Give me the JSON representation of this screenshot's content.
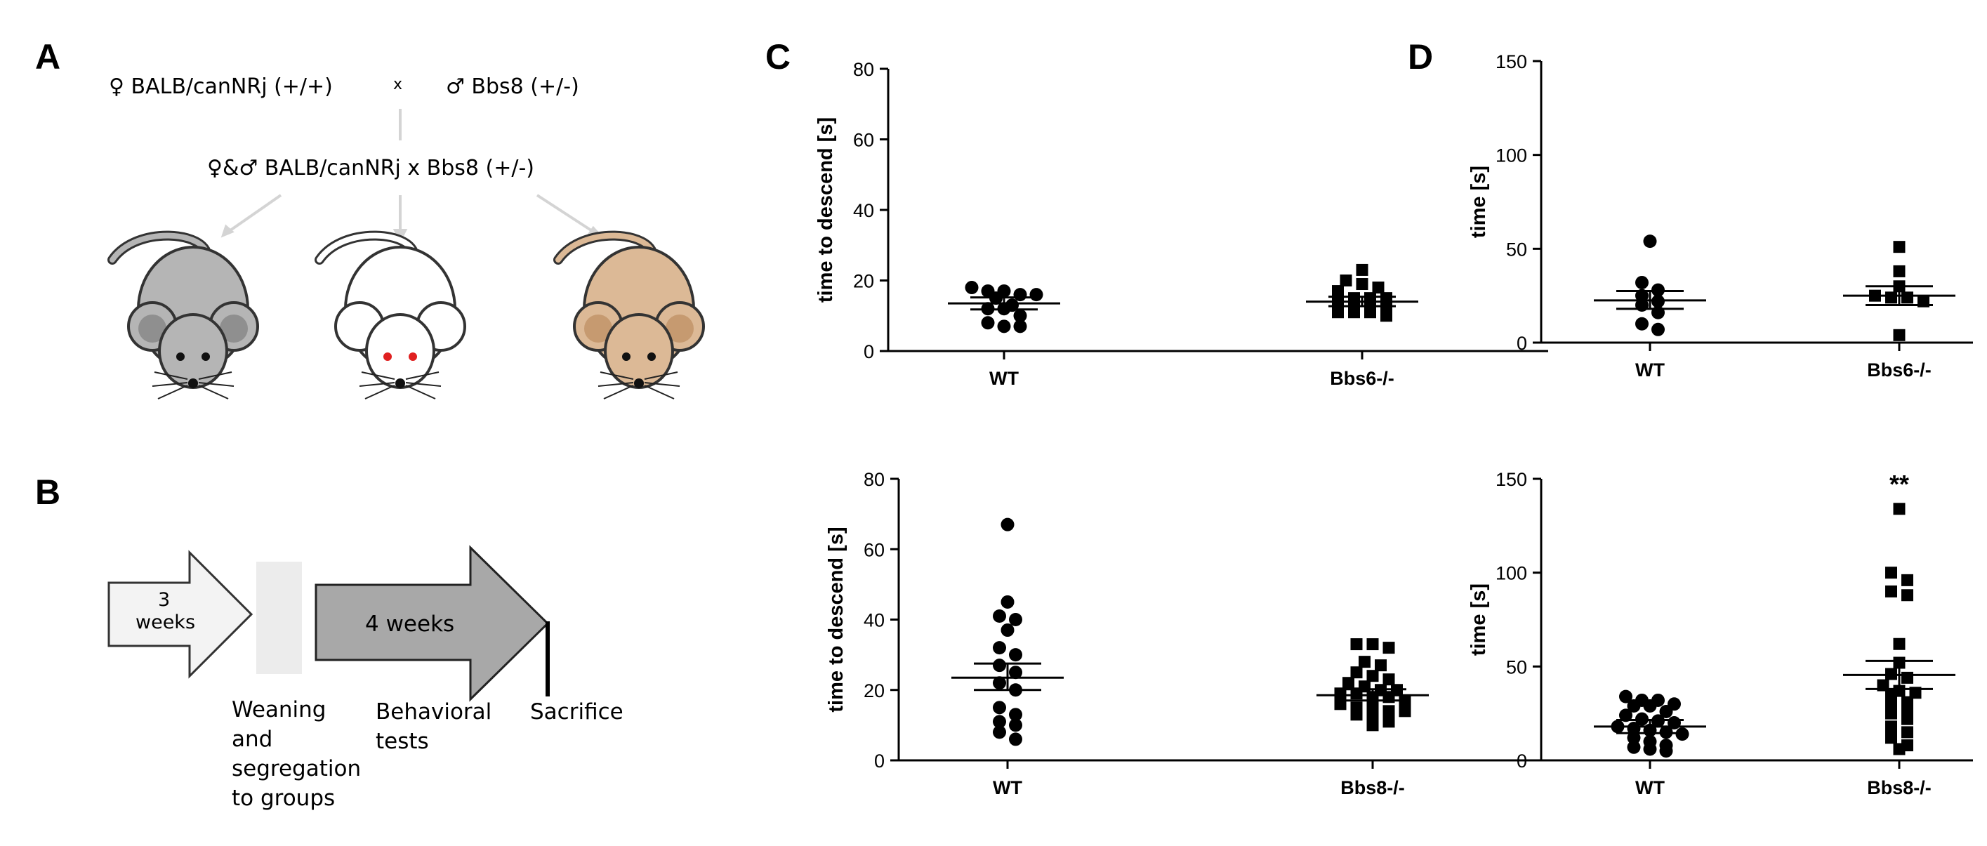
{
  "panel_labels": {
    "a": "A",
    "b": "B",
    "c": "C",
    "d": "D"
  },
  "panel_a": {
    "parent_female": "♀ BALB/canNRj (+/+)",
    "cross_symbol": "x",
    "parent_male": "♂ Bbs8 (+/-)",
    "offspring": "♀&♂ BALB/canNRj x Bbs8 (+/-)",
    "mice": [
      {
        "name": "grey",
        "body": "#b5b5b5",
        "ear": "#8f8f8f",
        "eye": "#111111"
      },
      {
        "name": "albino",
        "body": "#ffffff",
        "ear": "#ffffff",
        "eye": "#e02020"
      },
      {
        "name": "agouti",
        "body": "#dcb996",
        "ear": "#c69a70",
        "eye": "#111111"
      }
    ]
  },
  "panel_b": {
    "arrow1_label_line1": "3",
    "arrow1_label_line2": "weeks",
    "arrow2_label": "4 weeks",
    "step1_line1": "Weaning",
    "step1_line2": "and",
    "step1_line3": "segregation",
    "step1_line4": "to groups",
    "step2_line1": "Behavioral",
    "step2_line2": "tests",
    "step3": "Sacrifice"
  },
  "chart_data": [
    {
      "id": "c-top",
      "type": "scatter",
      "ylabel": "time to descend [s]",
      "ylim": [
        0,
        80
      ],
      "yticks": [
        0,
        20,
        40,
        60,
        80
      ],
      "categories": [
        "WT",
        "Bbs6-/-"
      ],
      "series": [
        {
          "name": "WT",
          "marker": "circle",
          "values": [
            16,
            17,
            17,
            16,
            15,
            18,
            13,
            12,
            12,
            10,
            7,
            7,
            8
          ],
          "mean": 13.5,
          "sem_low": 11.8,
          "sem_high": 15.2,
          "annotation": ""
        },
        {
          "name": "Bbs6-/-",
          "marker": "square",
          "values": [
            23,
            20,
            19,
            18,
            17,
            15,
            15,
            15,
            14,
            13,
            13,
            12,
            11,
            11,
            11,
            10
          ],
          "mean": 14,
          "sem_low": 12.7,
          "sem_high": 15.4,
          "annotation": ""
        }
      ]
    },
    {
      "id": "c-bottom",
      "type": "scatter",
      "ylabel": "time to descend [s]",
      "ylim": [
        0,
        80
      ],
      "yticks": [
        0,
        20,
        40,
        60,
        80
      ],
      "categories": [
        "WT",
        "Bbs8-/-"
      ],
      "series": [
        {
          "name": "WT",
          "marker": "circle",
          "values": [
            67,
            45,
            41,
            40,
            37,
            32,
            30,
            27,
            25,
            22,
            20,
            15,
            13,
            11,
            10,
            8,
            6
          ],
          "mean": 23.5,
          "sem_low": 20,
          "sem_high": 27.5,
          "annotation": ""
        },
        {
          "name": "Bbs8-/-",
          "marker": "square",
          "values": [
            33,
            33,
            32,
            28,
            27,
            25,
            24,
            23,
            22,
            21,
            20,
            20,
            19,
            19,
            18,
            18,
            17,
            16,
            15,
            15,
            14,
            14,
            13,
            12,
            11,
            10
          ],
          "mean": 18.5,
          "sem_low": 17,
          "sem_high": 20.2,
          "annotation": ""
        }
      ]
    },
    {
      "id": "d-top",
      "type": "scatter",
      "ylabel": "time  [s]",
      "ylim": [
        0,
        150
      ],
      "yticks": [
        0,
        50,
        100,
        150
      ],
      "categories": [
        "WT",
        "Bbs6-/-"
      ],
      "series": [
        {
          "name": "WT",
          "marker": "circle",
          "values": [
            54,
            32,
            28,
            25,
            22,
            20,
            16,
            10,
            7
          ],
          "mean": 22.5,
          "sem_low": 18,
          "sem_high": 27.5,
          "annotation": ""
        },
        {
          "name": "Bbs6-/-",
          "marker": "square",
          "values": [
            51,
            38,
            30,
            25,
            24,
            24,
            22,
            4
          ],
          "mean": 25,
          "sem_low": 20,
          "sem_high": 30,
          "annotation": ""
        }
      ]
    },
    {
      "id": "d-bottom",
      "type": "scatter",
      "ylabel": "time [s]",
      "ylim": [
        0,
        150
      ],
      "yticks": [
        0,
        50,
        100,
        150
      ],
      "categories": [
        "WT",
        "Bbs8-/-"
      ],
      "series": [
        {
          "name": "WT",
          "marker": "circle",
          "values": [
            34,
            32,
            32,
            30,
            29,
            29,
            26,
            24,
            22,
            21,
            20,
            18,
            17,
            16,
            15,
            14,
            12,
            10,
            8,
            7,
            6,
            5
          ],
          "mean": 18,
          "sem_low": 14.5,
          "sem_high": 21.5,
          "annotation": ""
        },
        {
          "name": "Bbs8-/-",
          "marker": "square",
          "values": [
            134,
            100,
            96,
            90,
            88,
            62,
            52,
            46,
            44,
            40,
            37,
            36,
            35,
            31,
            30,
            28,
            25,
            22,
            18,
            15,
            12,
            8,
            6
          ],
          "mean": 45.5,
          "sem_low": 38,
          "sem_high": 53,
          "annotation": "**"
        }
      ]
    }
  ]
}
